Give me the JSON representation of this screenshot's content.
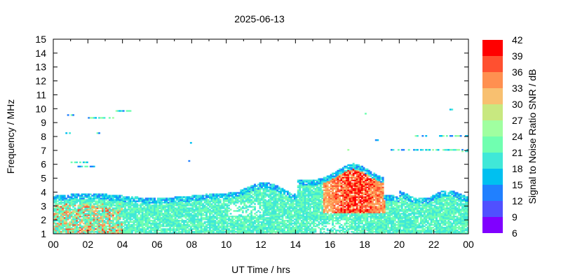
{
  "chart_data": {
    "type": "heatmap",
    "title": "2025-06-13",
    "xlabel": "UT Time / hrs",
    "ylabel": "Frequency / MHz",
    "xlim": [
      0,
      24
    ],
    "ylim": [
      1,
      15
    ],
    "x_ticks": [
      "00",
      "02",
      "04",
      "06",
      "08",
      "10",
      "12",
      "14",
      "16",
      "18",
      "20",
      "22",
      "00"
    ],
    "y_ticks": [
      "1",
      "2",
      "3",
      "4",
      "5",
      "6",
      "7",
      "8",
      "9",
      "10",
      "11",
      "12",
      "13",
      "14",
      "15"
    ],
    "colorbar": {
      "label": "Signal to Noise Ratio SNR / dB",
      "levels": [
        6,
        9,
        12,
        15,
        18,
        21,
        24,
        27,
        30,
        33,
        36,
        39,
        42
      ],
      "tick_labels": [
        "6",
        "9",
        "12",
        "15",
        "18",
        "21",
        "24",
        "27",
        "30",
        "33",
        "36",
        "39",
        "42"
      ],
      "colors": [
        "#8000ff",
        "#5050ff",
        "#2080ff",
        "#00c0f0",
        "#40e8d8",
        "#70ffb0",
        "#a0ffa0",
        "#c8e880",
        "#f8c070",
        "#ff9050",
        "#ff5030",
        "#ff0000"
      ]
    },
    "grid": false
  }
}
